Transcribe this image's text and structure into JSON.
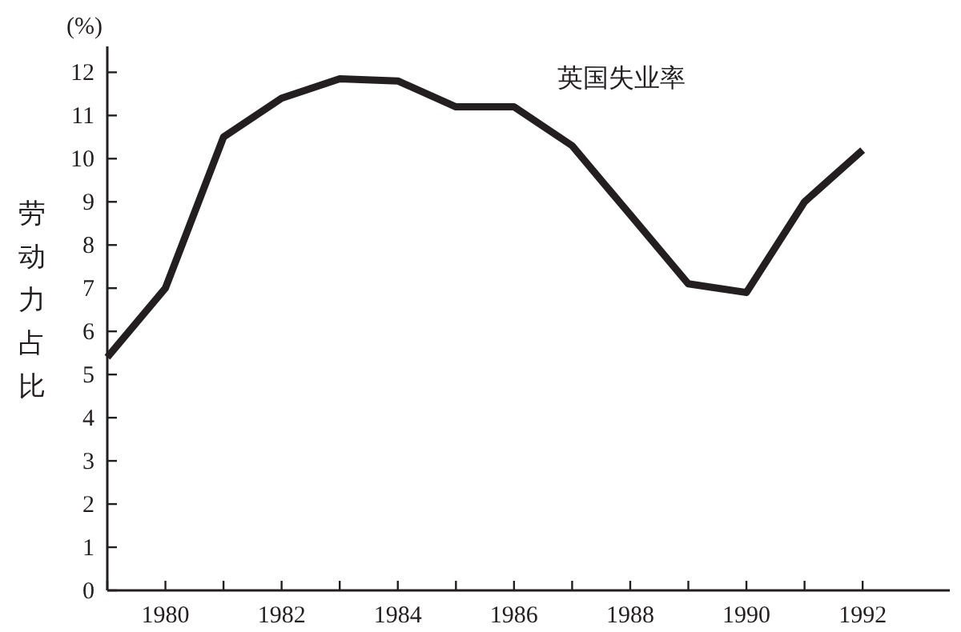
{
  "chart_data": {
    "type": "line",
    "title": "英国失业率",
    "ylabel": "劳动力占比",
    "annotations": [
      "(%)"
    ],
    "x": [
      1979,
      1980,
      1981,
      1982,
      1983,
      1984,
      1985,
      1986,
      1987,
      1988,
      1989,
      1990,
      1991,
      1992
    ],
    "series": [
      {
        "color": "#231f20",
        "values": [
          5.4,
          7.0,
          10.5,
          11.4,
          11.85,
          11.8,
          11.2,
          11.2,
          10.3,
          8.7,
          7.1,
          6.9,
          9.0,
          10.2
        ]
      }
    ],
    "xlim": [
      1979,
      1993.5
    ],
    "ylim": [
      0,
      12.6
    ],
    "xticks": [
      {
        "value": 1979,
        "label": null
      },
      1980,
      {
        "value": 1981,
        "label": null
      },
      1982,
      {
        "value": 1983,
        "label": null
      },
      1984,
      {
        "value": 1985,
        "label": null
      },
      1986,
      {
        "value": 1987,
        "label": null
      },
      1988,
      {
        "value": 1989,
        "label": null
      },
      1990,
      {
        "value": 1991,
        "label": null
      },
      1992
    ],
    "yticks": [
      0,
      1,
      2,
      3,
      4,
      5,
      6,
      7,
      8,
      9,
      10,
      11,
      12
    ],
    "grid": false,
    "marker": "none",
    "line_style": "solid"
  }
}
